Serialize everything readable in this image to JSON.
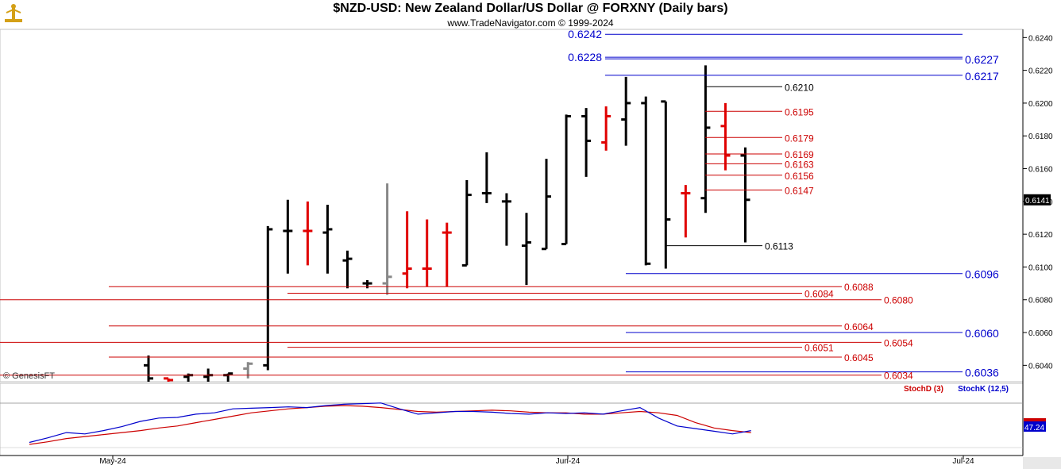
{
  "header": {
    "title": "$NZD-USD:  New Zealand Dollar/US Dollar @ FORXNY  (Daily bars)",
    "copyright": "www.TradeNavigator.com © 1999-2024"
  },
  "watermark": "© GenesisFT",
  "colors": {
    "up": "#000000",
    "down": "#e00000",
    "flat": "#888888",
    "blue": "#0000cc",
    "red": "#cc0000",
    "axisBg": "#ffffff"
  },
  "chart_data": [
    {
      "type": "ohlc",
      "title": "$NZD-USD:  New Zealand Dollar/US Dollar @ FORXNY  (Daily bars)",
      "ylim": [
        0.603,
        0.6245
      ],
      "y_ticks": [
        "0.6240",
        "0.6220",
        "0.6200",
        "0.6180",
        "0.6160",
        "0.6140",
        "0.6120",
        "0.6100",
        "0.6080",
        "0.6060",
        "0.6040"
      ],
      "last_price": "0.6141",
      "x_ticks": [
        "May-24",
        "Jun-24",
        "Jul-24"
      ],
      "bars": [
        {
          "o": 0.604,
          "h": 0.6046,
          "l": 0.603,
          "c": 0.6032,
          "col": "up"
        },
        {
          "o": 0.6032,
          "h": 0.6032,
          "l": 0.603,
          "c": 0.6031,
          "col": "down"
        },
        {
          "o": 0.6033,
          "h": 0.6035,
          "l": 0.603,
          "c": 0.6034,
          "col": "up"
        },
        {
          "o": 0.6033,
          "h": 0.6038,
          "l": 0.603,
          "c": 0.6034,
          "col": "up"
        },
        {
          "o": 0.6034,
          "h": 0.6035,
          "l": 0.603,
          "c": 0.6035,
          "col": "up"
        },
        {
          "o": 0.6038,
          "h": 0.6042,
          "l": 0.6032,
          "c": 0.6041,
          "col": "flat"
        },
        {
          "o": 0.604,
          "h": 0.6125,
          "l": 0.6037,
          "c": 0.6123,
          "col": "up"
        },
        {
          "o": 0.6122,
          "h": 0.6141,
          "l": 0.6096,
          "c": 0.6122,
          "col": "up"
        },
        {
          "o": 0.6122,
          "h": 0.614,
          "l": 0.6101,
          "c": 0.6122,
          "col": "down"
        },
        {
          "o": 0.6121,
          "h": 0.6138,
          "l": 0.6096,
          "c": 0.6123,
          "col": "up"
        },
        {
          "o": 0.6104,
          "h": 0.611,
          "l": 0.6087,
          "c": 0.6105,
          "col": "up"
        },
        {
          "o": 0.609,
          "h": 0.6092,
          "l": 0.6087,
          "c": 0.609,
          "col": "up"
        },
        {
          "o": 0.609,
          "h": 0.6151,
          "l": 0.6083,
          "c": 0.6094,
          "col": "flat"
        },
        {
          "o": 0.6096,
          "h": 0.6134,
          "l": 0.6087,
          "c": 0.6099,
          "col": "down"
        },
        {
          "o": 0.6099,
          "h": 0.6129,
          "l": 0.6088,
          "c": 0.6099,
          "col": "down"
        },
        {
          "o": 0.6121,
          "h": 0.6127,
          "l": 0.6088,
          "c": 0.6121,
          "col": "down"
        },
        {
          "o": 0.6101,
          "h": 0.6153,
          "l": 0.6101,
          "c": 0.6144,
          "col": "up"
        },
        {
          "o": 0.6145,
          "h": 0.617,
          "l": 0.6139,
          "c": 0.6145,
          "col": "up"
        },
        {
          "o": 0.614,
          "h": 0.6145,
          "l": 0.6113,
          "c": 0.614,
          "col": "up"
        },
        {
          "o": 0.6113,
          "h": 0.6133,
          "l": 0.6089,
          "c": 0.6115,
          "col": "up"
        },
        {
          "o": 0.6111,
          "h": 0.6166,
          "l": 0.6111,
          "c": 0.6143,
          "col": "up"
        },
        {
          "o": 0.6114,
          "h": 0.6193,
          "l": 0.6114,
          "c": 0.6192,
          "col": "up"
        },
        {
          "o": 0.6192,
          "h": 0.6197,
          "l": 0.6155,
          "c": 0.6177,
          "col": "up"
        },
        {
          "o": 0.6176,
          "h": 0.6198,
          "l": 0.6171,
          "c": 0.6192,
          "col": "down"
        },
        {
          "o": 0.619,
          "h": 0.6216,
          "l": 0.6174,
          "c": 0.62,
          "col": "up"
        },
        {
          "o": 0.62,
          "h": 0.6204,
          "l": 0.6101,
          "c": 0.6102,
          "col": "up"
        },
        {
          "o": 0.6201,
          "h": 0.6201,
          "l": 0.6099,
          "c": 0.6129,
          "col": "up"
        },
        {
          "o": 0.6145,
          "h": 0.615,
          "l": 0.6118,
          "c": 0.6145,
          "col": "down"
        },
        {
          "o": 0.6142,
          "h": 0.6223,
          "l": 0.6133,
          "c": 0.6185,
          "col": "up"
        },
        {
          "o": 0.6186,
          "h": 0.62,
          "l": 0.6159,
          "c": 0.6168,
          "col": "down"
        },
        {
          "o": 0.6168,
          "h": 0.6173,
          "l": 0.6115,
          "c": 0.6141,
          "col": "up"
        }
      ],
      "levels": [
        {
          "v": 0.6242,
          "label": "0.6242",
          "color": "blue",
          "side": "left"
        },
        {
          "v": 0.6228,
          "label": "0.6228",
          "color": "blue",
          "side": "left"
        },
        {
          "v": 0.6227,
          "label": "0.6227",
          "color": "blue",
          "side": "right"
        },
        {
          "v": 0.6217,
          "label": "0.6217",
          "color": "blue",
          "side": "right"
        },
        {
          "v": 0.621,
          "label": "0.6210",
          "color": "black",
          "side": "mid"
        },
        {
          "v": 0.6195,
          "label": "0.6195",
          "color": "red",
          "side": "mid"
        },
        {
          "v": 0.6179,
          "label": "0.6179",
          "color": "red",
          "side": "mid"
        },
        {
          "v": 0.6169,
          "label": "0.6169",
          "color": "red",
          "side": "mid"
        },
        {
          "v": 0.6163,
          "label": "0.6163",
          "color": "red",
          "side": "mid"
        },
        {
          "v": 0.6156,
          "label": "0.6156",
          "color": "red",
          "side": "mid"
        },
        {
          "v": 0.6147,
          "label": "0.6147",
          "color": "red",
          "side": "mid"
        },
        {
          "v": 0.6113,
          "label": "0.6113",
          "color": "black",
          "side": "mid"
        },
        {
          "v": 0.6096,
          "label": "0.6096",
          "color": "blue",
          "side": "right"
        },
        {
          "v": 0.6088,
          "label": "0.6088",
          "color": "red",
          "side": "mid"
        },
        {
          "v": 0.6084,
          "label": "0.6084",
          "color": "red",
          "side": "mid"
        },
        {
          "v": 0.608,
          "label": "0.6080",
          "color": "red",
          "side": "mid"
        },
        {
          "v": 0.6064,
          "label": "0.6064",
          "color": "red",
          "side": "mid"
        },
        {
          "v": 0.606,
          "label": "0.6060",
          "color": "blue",
          "side": "right"
        },
        {
          "v": 0.6054,
          "label": "0.6054",
          "color": "red",
          "side": "mid"
        },
        {
          "v": 0.6051,
          "label": "0.6051",
          "color": "red",
          "side": "mid"
        },
        {
          "v": 0.6045,
          "label": "0.6045",
          "color": "red",
          "side": "mid"
        },
        {
          "v": 0.6036,
          "label": "0.6036",
          "color": "blue",
          "side": "right"
        },
        {
          "v": 0.6034,
          "label": "0.6034",
          "color": "red",
          "side": "mid"
        }
      ]
    },
    {
      "type": "line",
      "ylim": [
        0,
        100
      ],
      "series": [
        {
          "name": "StochD (3)",
          "color": "#cc0000",
          "values": [
            12,
            16,
            21,
            24,
            27,
            30,
            33,
            37,
            40,
            45,
            50,
            55,
            60,
            63,
            66,
            68,
            70,
            71,
            70,
            68,
            65,
            62,
            61,
            62,
            63,
            64,
            63,
            61,
            60,
            60,
            58,
            58,
            60,
            62,
            60,
            56,
            45,
            37,
            33,
            30
          ]
        },
        {
          "name": "StochK (12,5)",
          "color": "#0000cc",
          "values": [
            15,
            22,
            30,
            28,
            33,
            39,
            47,
            52,
            53,
            58,
            60,
            66,
            67,
            68,
            69,
            68,
            71,
            73,
            74,
            75,
            66,
            58,
            60,
            62,
            62,
            61,
            59,
            58,
            60,
            59,
            60,
            58,
            63,
            68,
            52,
            40,
            36,
            32,
            28,
            33
          ]
        }
      ],
      "last_value": "47.24"
    }
  ]
}
